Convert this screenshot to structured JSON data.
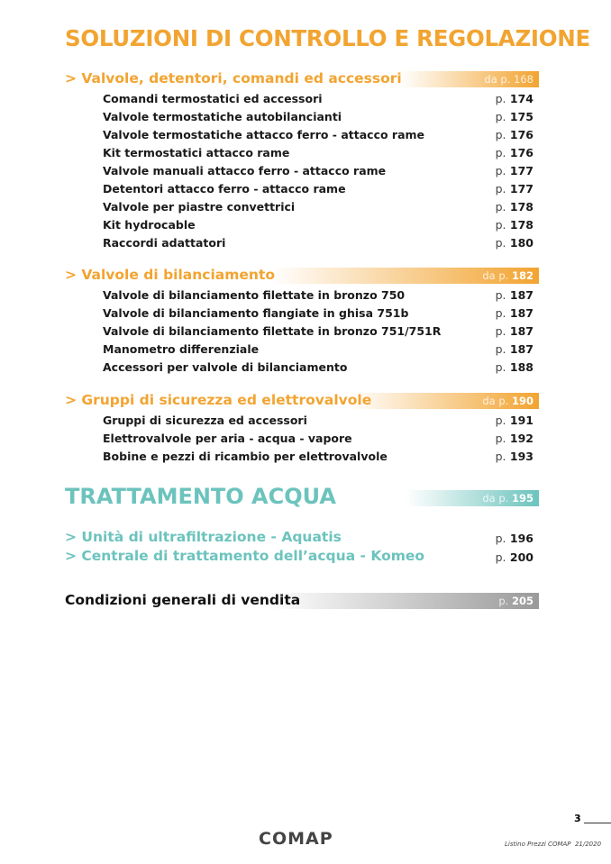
{
  "title": "SOLUZIONI DI CONTROLLO E REGOLAZIONE",
  "colors": {
    "orange": "#f2a431",
    "teal": "#6cc3bd",
    "gray": "#9a9a9a"
  },
  "sections": [
    {
      "label": "> Valvole, detentori, comandi ed accessori",
      "page_prefix": "da p.",
      "page": "168",
      "items": [
        {
          "t": "Comandi termostatici ed accessori",
          "p": "174"
        },
        {
          "t": "Valvole termostatiche autobilancianti",
          "p": "175"
        },
        {
          "t": "Valvole termostatiche attacco ferro - attacco rame",
          "p": "176"
        },
        {
          "t": "Kit termostatici attacco rame",
          "p": "176"
        },
        {
          "t": "Valvole manuali attacco ferro - attacco rame",
          "p": "177"
        },
        {
          "t": "Detentori attacco ferro - attacco rame",
          "p": "177"
        },
        {
          "t": "Valvole per piastre convettrici",
          "p": "178"
        },
        {
          "t": "Kit hydrocable",
          "p": "178"
        },
        {
          "t": "Raccordi adattatori",
          "p": "180"
        }
      ]
    },
    {
      "label": "> Valvole di bilanciamento",
      "page_prefix": "da p.",
      "page": "182",
      "items": [
        {
          "t": "Valvole di bilanciamento filettate in bronzo 750",
          "p": "187"
        },
        {
          "t": "Valvole di bilanciamento flangiate in ghisa 751b",
          "p": "187"
        },
        {
          "t": "Valvole di bilanciamento filettate in bronzo 751/751R",
          "p": "187"
        },
        {
          "t": "Manometro differenziale",
          "p": "187"
        },
        {
          "t": "Accessori per valvole di bilanciamento",
          "p": "188"
        }
      ]
    },
    {
      "label": "> Gruppi di sicurezza ed elettrovalvole",
      "page_prefix": "da p.",
      "page": "190",
      "items": [
        {
          "t": "Gruppi di sicurezza ed accessori",
          "p": "191"
        },
        {
          "t": "Elettrovalvole per aria - acqua - vapore",
          "p": "192"
        },
        {
          "t": "Bobine e pezzi di ricambio per elettrovalvole",
          "p": "193"
        }
      ]
    }
  ],
  "p_prefix": "p.",
  "water": {
    "title": "TRATTAMENTO ACQUA",
    "page_prefix": "da p.",
    "page": "195",
    "items": [
      {
        "t": "> Unità di ultrafiltrazione - Aquatis",
        "p": "196"
      },
      {
        "t": "> Centrale di trattamento dell’acqua - Komeo",
        "p": "200"
      }
    ]
  },
  "conditions": {
    "label": "Condizioni generali di vendita",
    "page": "205"
  },
  "footer": {
    "page_number": "3",
    "logo": "COMAP",
    "caption": "Listino Prezzi COMAP  21/2020"
  }
}
